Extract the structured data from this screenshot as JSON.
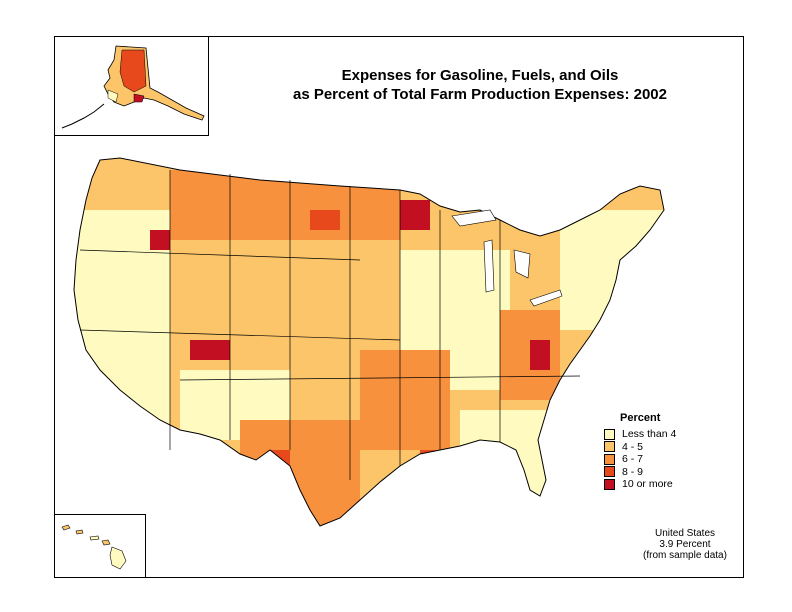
{
  "title": {
    "line1": "Expenses for Gasoline, Fuels, and Oils",
    "line2": "as Percent of Total Farm Production Expenses:  2002"
  },
  "legend": {
    "title": "Percent",
    "items": [
      {
        "label": "Less than 4",
        "color": "#fffbc0"
      },
      {
        "label": "4 - 5",
        "color": "#fdc56a"
      },
      {
        "label": "6 - 7",
        "color": "#f7913d"
      },
      {
        "label": "8 - 9",
        "color": "#e7491d"
      },
      {
        "label": "10 or more",
        "color": "#c20f22"
      }
    ]
  },
  "summary": {
    "line1": "United States",
    "line2": "3.9 Percent",
    "line3": "(from sample data)"
  },
  "colors": {
    "border": "#000000",
    "water": "#ffffff"
  }
}
